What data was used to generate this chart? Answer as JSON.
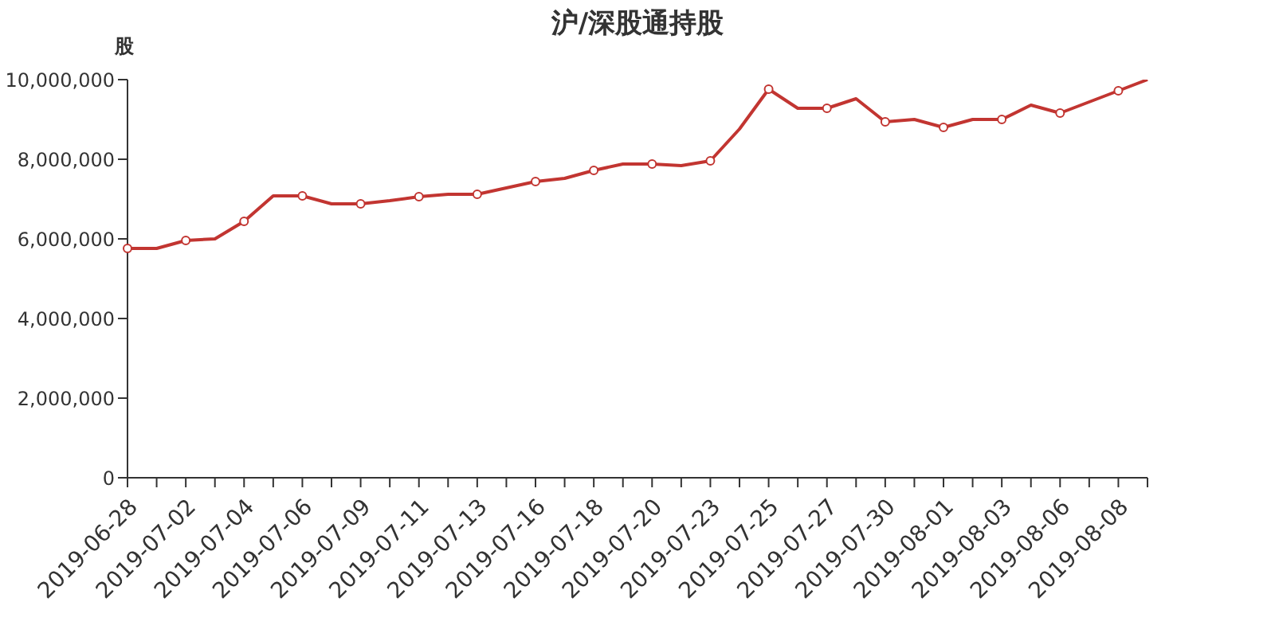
{
  "chart_data": {
    "type": "line",
    "title": "沪/深股通持股",
    "ylabel": "股",
    "categories": [
      "2019-06-28",
      null,
      "2019-07-02",
      null,
      "2019-07-04",
      null,
      "2019-07-06",
      null,
      "2019-07-09",
      null,
      "2019-07-11",
      null,
      "2019-07-13",
      null,
      "2019-07-16",
      null,
      "2019-07-18",
      null,
      "2019-07-20",
      null,
      "2019-07-23",
      null,
      "2019-07-25",
      null,
      "2019-07-27",
      null,
      "2019-07-30",
      null,
      "2019-08-01",
      null,
      "2019-08-03",
      null,
      "2019-08-06",
      null,
      "2019-08-08",
      null
    ],
    "series": [
      {
        "color": "#c23531",
        "values": [
          5760000,
          5760000,
          5960000,
          6000000,
          6440000,
          7080000,
          7080000,
          6880000,
          6880000,
          6960000,
          7060000,
          7120000,
          7120000,
          7280000,
          7440000,
          7520000,
          7720000,
          7880000,
          7880000,
          7840000,
          7960000,
          8760000,
          9760000,
          9280000,
          9280000,
          9520000,
          8940000,
          9000000,
          8800000,
          9000000,
          9000000,
          9360000,
          9160000,
          9440000,
          9720000,
          10000000
        ]
      }
    ],
    "ylim": [
      0,
      10000000
    ],
    "yticks": [
      {
        "value": 0,
        "label": "0"
      },
      {
        "value": 2000000,
        "label": "2,000,000"
      },
      {
        "value": 4000000,
        "label": "4,000,000"
      },
      {
        "value": 6000000,
        "label": "6,000,000"
      },
      {
        "value": 8000000,
        "label": "8,000,000"
      },
      {
        "value": 10000000,
        "label": "10,000,000"
      }
    ],
    "marker": "circle",
    "line_style": "solid",
    "grid": false,
    "legend": false
  }
}
